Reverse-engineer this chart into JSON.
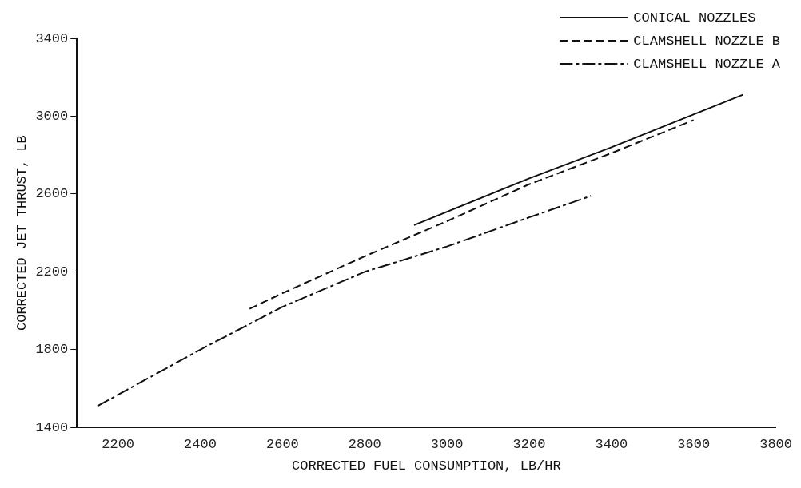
{
  "chart_data": {
    "type": "line",
    "xlabel": "CORRECTED FUEL CONSUMPTION, LB/HR",
    "ylabel": "CORRECTED JET THRUST, LB",
    "xlim": [
      2100,
      3800
    ],
    "xticks": [
      2200,
      2400,
      2600,
      2800,
      3000,
      3200,
      3400,
      3600,
      3800
    ],
    "ylim": [
      1400,
      3400
    ],
    "yticks": [
      1400,
      1800,
      2200,
      2600,
      3000,
      3400
    ],
    "grid": false,
    "legend": "top right",
    "marker": "none",
    "series": [
      {
        "name": "CONICAL NOZZLES",
        "color": "#111111",
        "line_style": "solid",
        "x": [
          2920,
          3200,
          3400,
          3720
        ],
        "values": [
          2440,
          2680,
          2840,
          3110
        ]
      },
      {
        "name": "CLAMSHELL NOZZLE B",
        "color": "#111111",
        "line_style": "dashed",
        "x": [
          2520,
          2600,
          2800,
          3000,
          3200,
          3400,
          3600
        ],
        "values": [
          2010,
          2090,
          2280,
          2460,
          2650,
          2810,
          2980
        ]
      },
      {
        "name": "CLAMSHELL NOZZLE A",
        "color": "#111111",
        "line_style": "dashdot",
        "x": [
          2150,
          2400,
          2600,
          2800,
          3000,
          3200,
          3350
        ],
        "values": [
          1510,
          1800,
          2020,
          2200,
          2330,
          2480,
          2590
        ]
      }
    ]
  }
}
